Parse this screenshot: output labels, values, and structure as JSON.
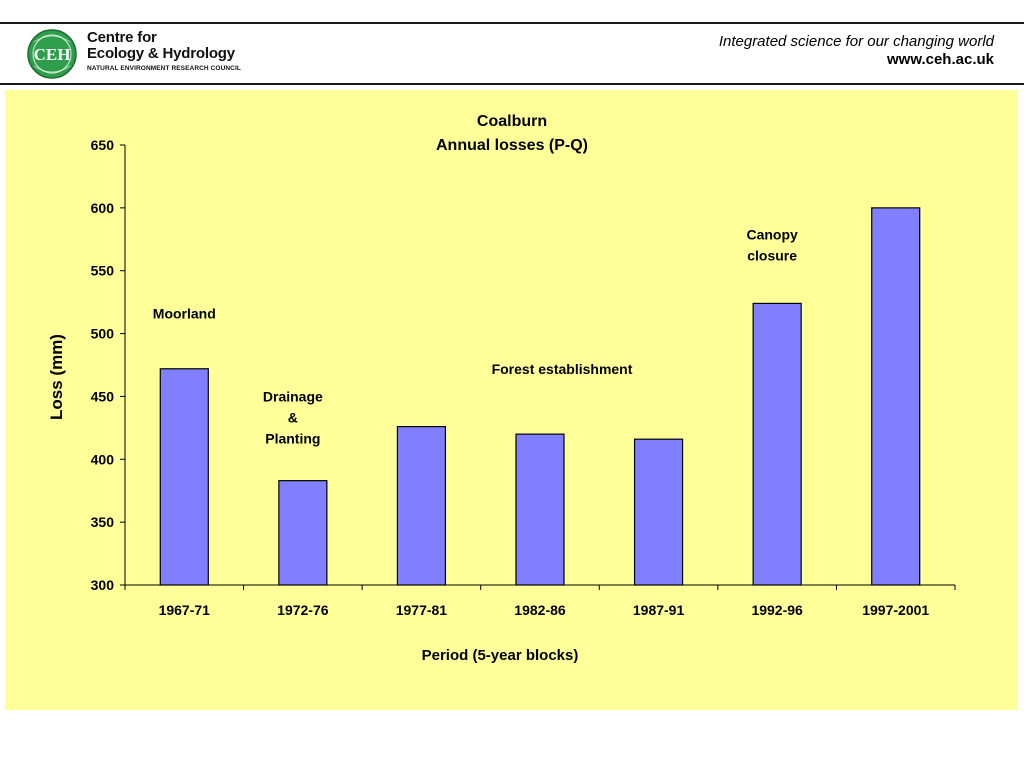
{
  "header": {
    "logo": {
      "mark_text": "CEH",
      "line1": "Centre for",
      "line2": "Ecology & Hydrology",
      "line3": "NATURAL ENVIRONMENT RESEARCH COUNCIL"
    },
    "tagline": "Integrated science for our changing world",
    "url": "www.ceh.ac.uk"
  },
  "colors": {
    "panel_background": "#ffff99",
    "bar_fill": "#8080ff",
    "bar_stroke": "#000000",
    "logo_green": "#2e9e4a"
  },
  "chart_data": {
    "type": "bar",
    "title": [
      "Coalburn",
      "Annual losses (P-Q)"
    ],
    "xlabel": "Period (5-year blocks)",
    "ylabel": "Loss (mm)",
    "ylim": [
      300,
      650
    ],
    "yticks": [
      300,
      350,
      400,
      450,
      500,
      550,
      600,
      650
    ],
    "grid": false,
    "legend": "none",
    "categories": [
      "1967-71",
      "1972-76",
      "1977-81",
      "1982-86",
      "1987-91",
      "1992-96",
      "1997-2001"
    ],
    "values": [
      472,
      383,
      426,
      420,
      416,
      524,
      600
    ],
    "annotations": [
      {
        "lines": [
          "Moorland"
        ],
        "near_category": "1967-71",
        "at_value": 512
      },
      {
        "lines": [
          "Drainage",
          "&",
          "Planting"
        ],
        "near_category": "1972-76",
        "at_value": 446
      },
      {
        "lines": [
          "Forest establishment"
        ],
        "near_category": "1982-86",
        "at_value": 468
      },
      {
        "lines": [
          "Canopy",
          "closure"
        ],
        "near_category": "1992-96",
        "at_value": 575
      }
    ]
  }
}
